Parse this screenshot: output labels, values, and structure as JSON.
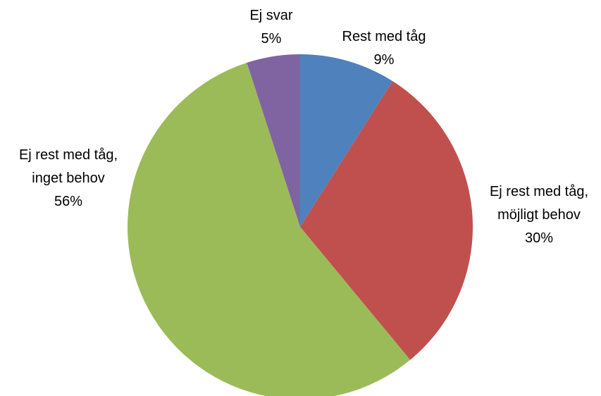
{
  "chart_data": {
    "type": "pie",
    "categories": [
      "Rest med tåg",
      "Ej rest med tåg, möjligt behov",
      "Ej rest med tåg, inget behov",
      "Ej svar"
    ],
    "values": [
      9,
      30,
      56,
      5
    ],
    "value_labels": [
      "9%",
      "30%",
      "56%",
      "5%"
    ],
    "colors": [
      "#4f81bd",
      "#c0504d",
      "#9bbb59",
      "#8064a2"
    ]
  }
}
